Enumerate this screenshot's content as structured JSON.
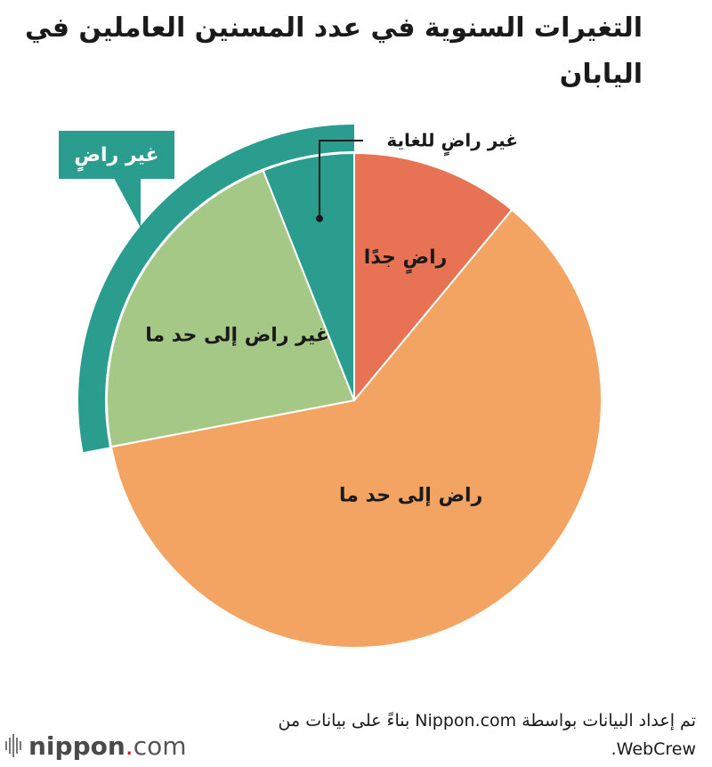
{
  "title": "التغيرات السنوية في عدد المسنين العاملين في اليابان",
  "source": "تم إعداد البيانات بواسطة Nippon.com بناءً على بيانات من WebCrew.",
  "logo": {
    "name": "nippon",
    "dot": ".",
    "domain": "com"
  },
  "colors": {
    "very_satisfied": "#E87254",
    "somewhat_satisfied": "#F3A462",
    "somewhat_dissatisfied": "#A6C886",
    "very_dissatisfied": "#2A9D8F",
    "dissatisfied_group": "#2A9D8F"
  },
  "chart_data": {
    "type": "pie",
    "title": "التغيرات السنوية في عدد المسنين العاملين في اليابان",
    "slices": [
      {
        "key": "very_satisfied",
        "label": "راضٍ جدًا",
        "value": 11
      },
      {
        "key": "somewhat_satisfied",
        "label": "راض إلى حد ما",
        "value": 61
      },
      {
        "key": "somewhat_dissatisfied",
        "label": "غير راض إلى حد ما",
        "value": 22
      },
      {
        "key": "very_dissatisfied",
        "label": "غير راضٍ للغاية",
        "value": 6
      }
    ],
    "group": {
      "label": "غير راضٍ",
      "members": [
        "somewhat_dissatisfied",
        "very_dissatisfied"
      ]
    },
    "start": "12 o'clock",
    "direction": "clockwise",
    "legend": "none"
  }
}
